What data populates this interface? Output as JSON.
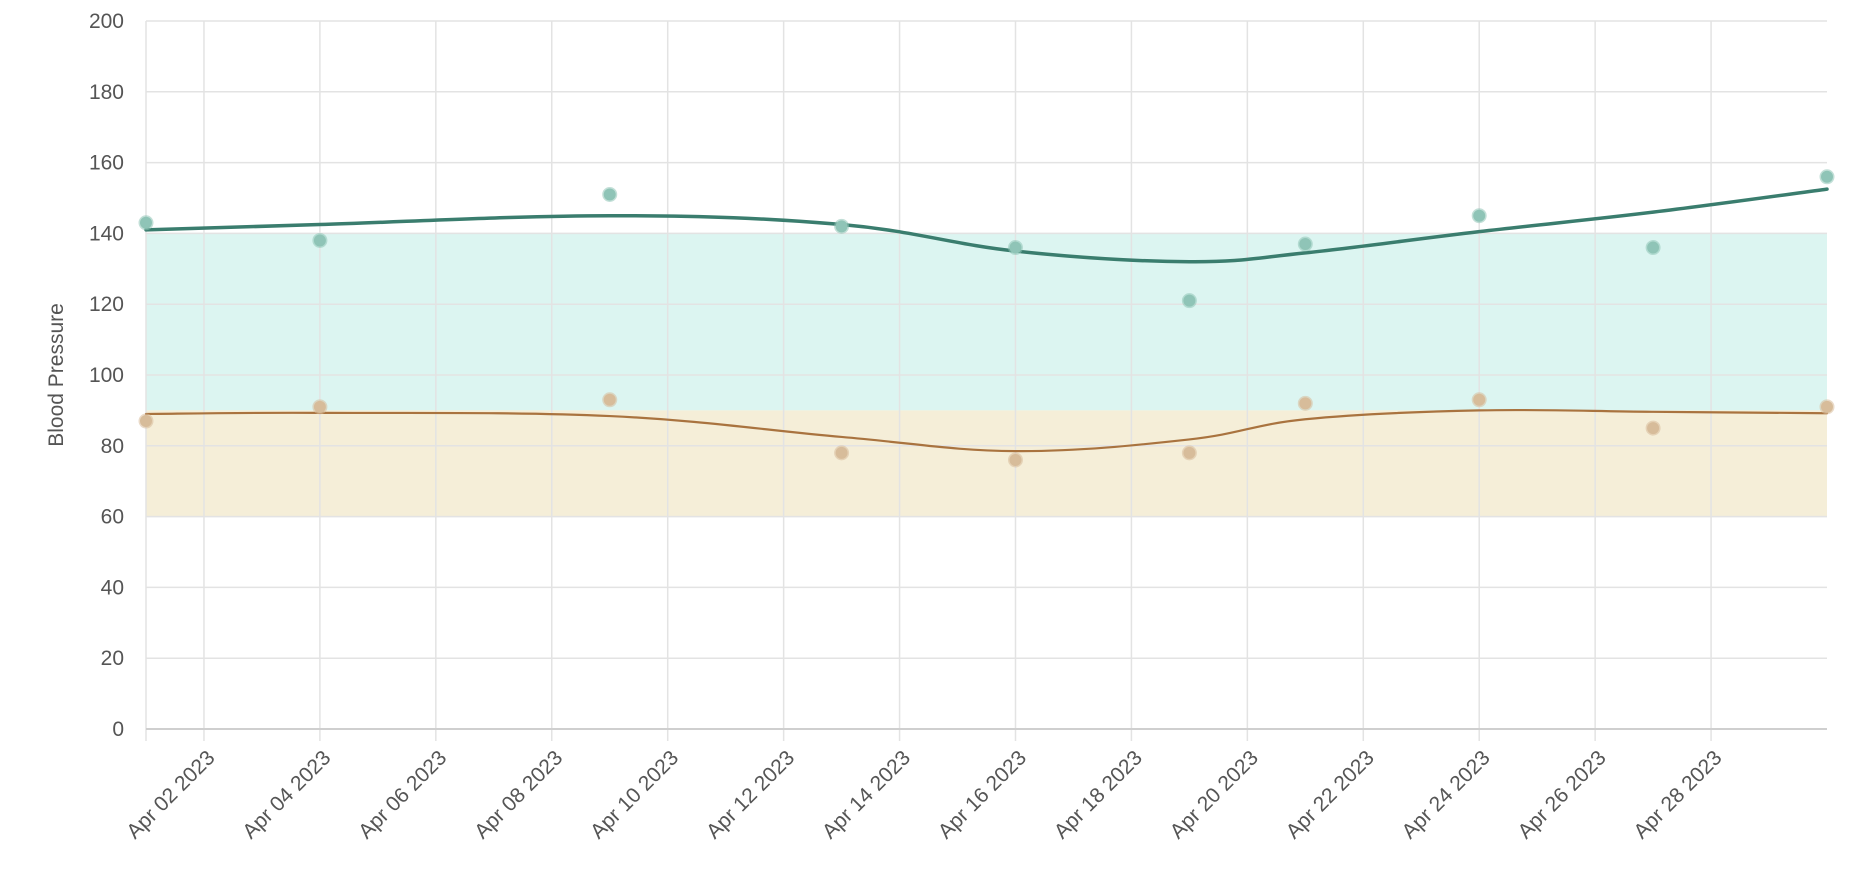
{
  "chart_data": {
    "type": "line",
    "ylabel": "Blood Pressure",
    "xlabel": "",
    "ylim": [
      0,
      200
    ],
    "y_ticks": [
      0,
      20,
      40,
      60,
      80,
      100,
      120,
      140,
      160,
      180,
      200
    ],
    "xlim": [
      "2023-04-01",
      "2023-04-30"
    ],
    "x_tick_labels": [
      "Apr 02 2023",
      "Apr 04 2023",
      "Apr 06 2023",
      "Apr 08 2023",
      "Apr 10 2023",
      "Apr 12 2023",
      "Apr 14 2023",
      "Apr 16 2023",
      "Apr 18 2023",
      "Apr 20 2023",
      "Apr 22 2023",
      "Apr 24 2023",
      "Apr 26 2023",
      "Apr 28 2023"
    ],
    "x_tick_dates": [
      "2023-04-02",
      "2023-04-04",
      "2023-04-06",
      "2023-04-08",
      "2023-04-10",
      "2023-04-12",
      "2023-04-14",
      "2023-04-16",
      "2023-04-18",
      "2023-04-20",
      "2023-04-22",
      "2023-04-24",
      "2023-04-26",
      "2023-04-28"
    ],
    "grid": true,
    "legend": "none",
    "bands": [
      {
        "from": 90,
        "to": 140,
        "color": "#dcf5f1"
      },
      {
        "from": 60,
        "to": 90,
        "color": "#f5eed8"
      }
    ],
    "series": [
      {
        "color": "#3a7d6e",
        "point_color": "#8fc4b7",
        "points": [
          {
            "x": "2023-04-01",
            "y": 143
          },
          {
            "x": "2023-04-04",
            "y": 138
          },
          {
            "x": "2023-04-09",
            "y": 151
          },
          {
            "x": "2023-04-13",
            "y": 142
          },
          {
            "x": "2023-04-16",
            "y": 136
          },
          {
            "x": "2023-04-19",
            "y": 121
          },
          {
            "x": "2023-04-21",
            "y": 137
          },
          {
            "x": "2023-04-24",
            "y": 145
          },
          {
            "x": "2023-04-27",
            "y": 136
          },
          {
            "x": "2023-04-30",
            "y": 156
          }
        ],
        "trend": [
          {
            "x": "2023-04-01",
            "y": 141
          },
          {
            "x": "2023-04-04",
            "y": 142.5
          },
          {
            "x": "2023-04-09",
            "y": 145
          },
          {
            "x": "2023-04-13",
            "y": 142.5
          },
          {
            "x": "2023-04-16",
            "y": 135
          },
          {
            "x": "2023-04-19",
            "y": 132
          },
          {
            "x": "2023-04-21",
            "y": 134.5
          },
          {
            "x": "2023-04-24",
            "y": 140.5
          },
          {
            "x": "2023-04-27",
            "y": 146
          },
          {
            "x": "2023-04-30",
            "y": 152.5
          }
        ]
      },
      {
        "color": "#a9733f",
        "point_color": "#d7bc9a",
        "points": [
          {
            "x": "2023-04-01",
            "y": 87
          },
          {
            "x": "2023-04-04",
            "y": 91
          },
          {
            "x": "2023-04-09",
            "y": 93
          },
          {
            "x": "2023-04-13",
            "y": 78
          },
          {
            "x": "2023-04-16",
            "y": 76
          },
          {
            "x": "2023-04-19",
            "y": 78
          },
          {
            "x": "2023-04-21",
            "y": 92
          },
          {
            "x": "2023-04-24",
            "y": 93
          },
          {
            "x": "2023-04-27",
            "y": 85
          },
          {
            "x": "2023-04-30",
            "y": 91
          }
        ],
        "trend": [
          {
            "x": "2023-04-01",
            "y": 89
          },
          {
            "x": "2023-04-04",
            "y": 89.3
          },
          {
            "x": "2023-04-09",
            "y": 88.4
          },
          {
            "x": "2023-04-13",
            "y": 82.5
          },
          {
            "x": "2023-04-16",
            "y": 78.5
          },
          {
            "x": "2023-04-19",
            "y": 81.8
          },
          {
            "x": "2023-04-21",
            "y": 87.5
          },
          {
            "x": "2023-04-24",
            "y": 90
          },
          {
            "x": "2023-04-27",
            "y": 89.6
          },
          {
            "x": "2023-04-30",
            "y": 89.2
          }
        ]
      }
    ]
  }
}
